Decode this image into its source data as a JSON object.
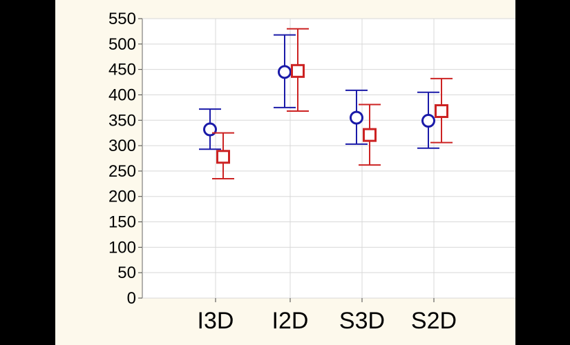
{
  "chart_data": {
    "type": "scatter",
    "categories": [
      "I3D",
      "I2D",
      "S3D",
      "S2D"
    ],
    "ylim": [
      0,
      550
    ],
    "yticks": [
      0,
      50,
      100,
      150,
      200,
      250,
      300,
      350,
      400,
      450,
      500,
      550
    ],
    "grid": true,
    "series": [
      {
        "marker": "circle",
        "color": "#1a1aa8",
        "values": [
          332,
          445,
          355,
          349
        ],
        "lower": [
          293,
          375,
          303,
          295
        ],
        "upper": [
          372,
          518,
          409,
          405
        ]
      },
      {
        "marker": "square",
        "color": "#cc2222",
        "values": [
          278,
          447,
          321,
          368
        ],
        "lower": [
          235,
          368,
          262,
          306
        ],
        "upper": [
          325,
          530,
          381,
          432
        ]
      }
    ]
  }
}
